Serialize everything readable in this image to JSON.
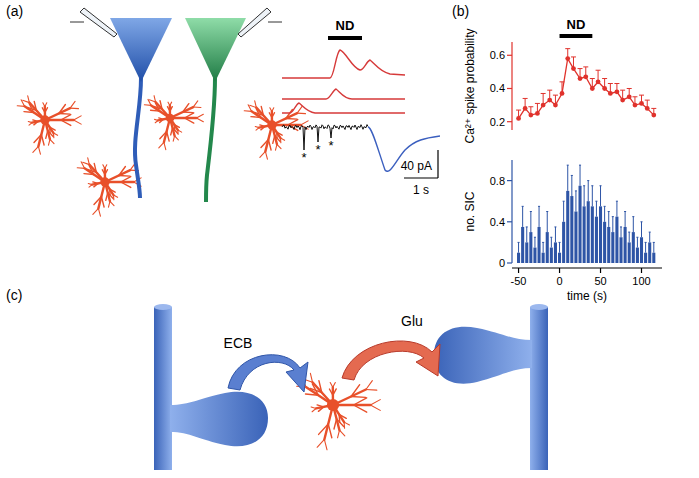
{
  "panel_labels": [
    "(a)",
    "(b)",
    "(c)"
  ],
  "panel_a": {
    "stimulus": "ND",
    "scale_current": "40 pA",
    "scale_time": "1 s",
    "event_marks": [
      "*",
      "*",
      "*"
    ]
  },
  "chart_data": [
    {
      "type": "line",
      "marker": "circle",
      "color": "#e0322c",
      "y_label": "Ca²⁺ spike probability",
      "annotations": [
        {
          "text": "ND",
          "x": [
            0,
            40
          ]
        }
      ],
      "x": [
        -50,
        -42,
        -35,
        -27,
        -20,
        -12,
        -5,
        3,
        10,
        17,
        25,
        32,
        40,
        47,
        55,
        62,
        70,
        77,
        85,
        92,
        100,
        107,
        115
      ],
      "values": [
        0.22,
        0.28,
        0.24,
        0.25,
        0.3,
        0.33,
        0.3,
        0.37,
        0.58,
        0.52,
        0.46,
        0.47,
        0.4,
        0.44,
        0.4,
        0.37,
        0.38,
        0.33,
        0.35,
        0.3,
        0.31,
        0.28,
        0.24
      ],
      "errors": [
        0.05,
        0.06,
        0.05,
        0.06,
        0.07,
        0.06,
        0.06,
        0.07,
        0.06,
        0.07,
        0.06,
        0.06,
        0.06,
        0.07,
        0.06,
        0.06,
        0.05,
        0.06,
        0.05,
        0.05,
        0.05,
        0.05,
        0.04
      ],
      "xlim": [
        -58,
        125
      ],
      "ylim": [
        0.15,
        0.68
      ],
      "yticks": [
        0.2,
        0.4,
        0.6
      ],
      "tick_labels": "y"
    },
    {
      "type": "bar",
      "color": "#2e55a6",
      "x_label": "time (s)",
      "y_label": "no. SIC",
      "x": [
        -50,
        -45,
        -40,
        -35,
        -30,
        -25,
        -20,
        -15,
        -10,
        -5,
        0,
        5,
        10,
        15,
        20,
        25,
        30,
        35,
        40,
        45,
        50,
        55,
        60,
        65,
        70,
        75,
        80,
        85,
        90,
        95,
        100,
        105,
        110,
        115
      ],
      "values": [
        0.1,
        0.35,
        0.2,
        0.3,
        0.15,
        0.35,
        0.1,
        0.3,
        0.15,
        0.2,
        0.1,
        0.4,
        0.7,
        0.65,
        0.5,
        0.75,
        0.55,
        0.6,
        0.55,
        0.45,
        0.55,
        0.4,
        0.35,
        0.3,
        0.45,
        0.25,
        0.35,
        0.2,
        0.3,
        0.15,
        0.25,
        0.1,
        0.2,
        0.1
      ],
      "errors": [
        0.1,
        0.2,
        0.15,
        0.2,
        0.1,
        0.2,
        0.1,
        0.2,
        0.1,
        0.15,
        0.1,
        0.2,
        0.25,
        0.2,
        0.2,
        0.2,
        0.2,
        0.2,
        0.2,
        0.15,
        0.2,
        0.15,
        0.15,
        0.15,
        0.15,
        0.1,
        0.15,
        0.1,
        0.15,
        0.1,
        0.15,
        0.1,
        0.1,
        0.1
      ],
      "xlim": [
        -58,
        125
      ],
      "xticks": [
        -50,
        0,
        50,
        100
      ],
      "ylim": [
        0,
        1.0
      ],
      "yticks": [
        0,
        0.4,
        0.8
      ]
    }
  ],
  "panel_c": {
    "labels": [
      "ECB",
      "Glu"
    ]
  }
}
